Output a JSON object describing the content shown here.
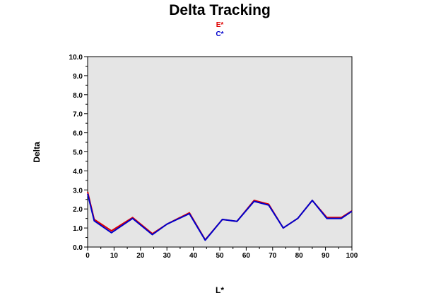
{
  "chart_data": {
    "type": "line",
    "title": "Delta Tracking",
    "xlabel": "L*",
    "ylabel": "Delta",
    "xlim": [
      0,
      100
    ],
    "ylim": [
      0,
      10
    ],
    "xticks": [
      "0",
      "10",
      "20",
      "30",
      "40",
      "50",
      "60",
      "70",
      "80",
      "90",
      "100"
    ],
    "yticks": [
      "0.0",
      "1.0",
      "2.0",
      "3.0",
      "4.0",
      "5.0",
      "6.0",
      "7.0",
      "8.0",
      "9.0",
      "10.0"
    ],
    "grid": false,
    "plot_background": "#e5e5e5",
    "legend_position": "top-center",
    "series": [
      {
        "name": "E*",
        "color": "#e00000",
        "x": [
          0,
          2.5,
          9,
          17,
          24.5,
          30,
          38.5,
          44.5,
          51,
          56.5,
          63,
          68.5,
          74,
          79.5,
          85,
          90.5,
          96,
          100
        ],
        "y": [
          2.9,
          1.45,
          0.85,
          1.55,
          0.7,
          1.2,
          1.8,
          0.38,
          1.45,
          1.35,
          2.45,
          2.25,
          1.0,
          1.5,
          2.45,
          1.55,
          1.55,
          1.9
        ]
      },
      {
        "name": "C*",
        "color": "#0000cc",
        "x": [
          0,
          2.5,
          9,
          17,
          24.5,
          30,
          38.5,
          44.5,
          51,
          56.5,
          63,
          68.5,
          74,
          79.5,
          85,
          90.5,
          96,
          100
        ],
        "y": [
          2.8,
          1.38,
          0.75,
          1.5,
          0.65,
          1.2,
          1.75,
          0.36,
          1.45,
          1.35,
          2.4,
          2.2,
          1.0,
          1.5,
          2.45,
          1.5,
          1.5,
          1.88
        ]
      }
    ]
  }
}
